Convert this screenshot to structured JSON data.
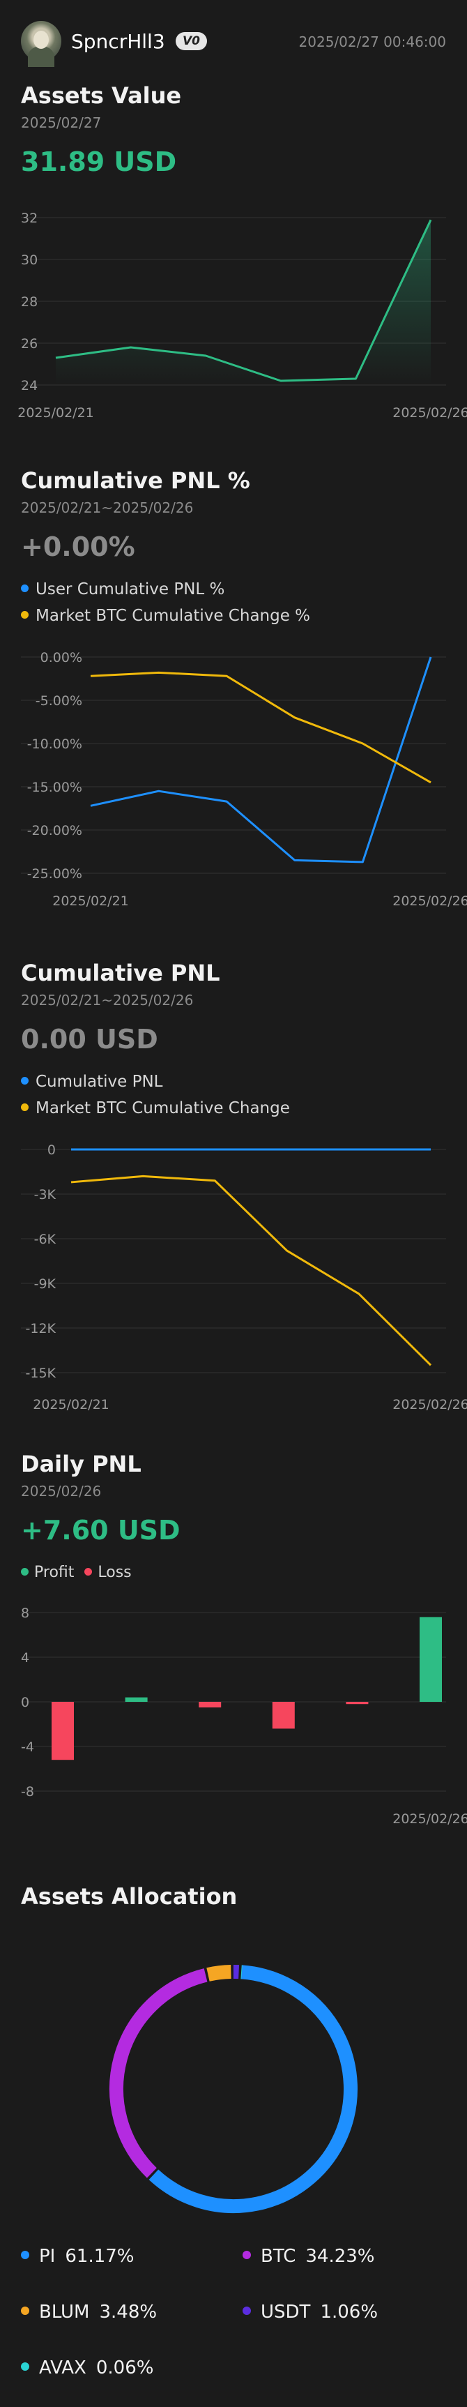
{
  "header": {
    "username": "SpncrHll3",
    "badge": "V0",
    "timestamp": "2025/02/27 00:46:00"
  },
  "assets_value": {
    "title": "Assets Value",
    "date": "2025/02/27",
    "value": "31.89 USD",
    "color": "#2ebd85"
  },
  "cumulative_pnl_pct": {
    "title": "Cumulative PNL %",
    "range": "2025/02/21~2025/02/26",
    "value": "+0.00%",
    "legend": [
      "User Cumulative PNL %",
      "Market BTC Cumulative Change %"
    ]
  },
  "cumulative_pnl": {
    "title": "Cumulative PNL",
    "range": "2025/02/21~2025/02/26",
    "value": "0.00 USD",
    "legend": [
      "Cumulative PNL",
      "Market BTC Cumulative Change"
    ]
  },
  "daily_pnl": {
    "title": "Daily PNL",
    "date": "2025/02/26",
    "value": "+7.60 USD",
    "legend": [
      "Profit",
      "Loss"
    ]
  },
  "assets_allocation": {
    "title": "Assets Allocation",
    "items": [
      {
        "name": "PI",
        "pct": "61.17%",
        "value": 61.17,
        "color": "#1e90ff"
      },
      {
        "name": "BTC",
        "pct": "34.23%",
        "value": 34.23,
        "color": "#b42be0"
      },
      {
        "name": "BLUM",
        "pct": "3.48%",
        "value": 3.48,
        "color": "#f5a623"
      },
      {
        "name": "USDT",
        "pct": "1.06%",
        "value": 1.06,
        "color": "#5b2de0"
      },
      {
        "name": "AVAX",
        "pct": "0.06%",
        "value": 0.06,
        "color": "#2ad4d4"
      }
    ]
  },
  "colors": {
    "green": "#2ebd85",
    "red": "#f6465d",
    "blue": "#1e90ff",
    "yellow": "#f0b90b",
    "grey_value": "#8b8b8b"
  },
  "chart_data": [
    {
      "type": "area",
      "name": "assets-value",
      "x": [
        "2025/02/21",
        "2025/02/22",
        "2025/02/23",
        "2025/02/24",
        "2025/02/25",
        "2025/02/26"
      ],
      "values": [
        25.3,
        25.8,
        25.4,
        24.2,
        24.3,
        31.89
      ],
      "ylim": [
        24,
        32
      ],
      "yticks": [
        24,
        26,
        28,
        30,
        32
      ],
      "xticks": [
        "2025/02/21",
        "2025/02/26"
      ],
      "xtick_index": [
        0,
        5
      ],
      "grid": true
    },
    {
      "type": "line",
      "name": "cumulative-pnl-pct",
      "x": [
        "2025/02/21",
        "2025/02/22",
        "2025/02/23",
        "2025/02/24",
        "2025/02/25",
        "2025/02/26"
      ],
      "series": [
        {
          "name": "User Cumulative PNL %",
          "values": [
            -17.2,
            -15.5,
            -16.7,
            -23.5,
            -23.7,
            0.0
          ],
          "color": "#1e90ff"
        },
        {
          "name": "Market BTC Cumulative Change %",
          "values": [
            -2.2,
            -1.8,
            -2.2,
            -7.0,
            -10.0,
            -14.5
          ],
          "color": "#f0b90b"
        }
      ],
      "ylim": [
        -25,
        0
      ],
      "yticks": [
        0,
        -5,
        -10,
        -15,
        -20,
        -25
      ],
      "ytick_labels": [
        "0.00%",
        "-5.00%",
        "-10.00%",
        "-15.00%",
        "-20.00%",
        "-25.00%"
      ],
      "xticks": [
        "2025/02/21",
        "2025/02/26"
      ],
      "xtick_index": [
        0,
        5
      ],
      "grid": true
    },
    {
      "type": "line",
      "name": "cumulative-pnl",
      "x": [
        "2025/02/21",
        "2025/02/22",
        "2025/02/23",
        "2025/02/24",
        "2025/02/25",
        "2025/02/26"
      ],
      "series": [
        {
          "name": "Cumulative PNL",
          "values": [
            0,
            0,
            0,
            0,
            0,
            0
          ],
          "color": "#1e90ff"
        },
        {
          "name": "Market BTC Cumulative Change",
          "values": [
            -2200,
            -1800,
            -2100,
            -6800,
            -9700,
            -14500
          ],
          "color": "#f0b90b"
        }
      ],
      "ylim": [
        -15000,
        0
      ],
      "yticks": [
        0,
        -3000,
        -6000,
        -9000,
        -12000,
        -15000
      ],
      "ytick_labels": [
        "0",
        "-3K",
        "-6K",
        "-9K",
        "-12K",
        "-15K"
      ],
      "xticks": [
        "2025/02/21",
        "2025/02/26"
      ],
      "xtick_index": [
        0,
        5
      ],
      "grid": true
    },
    {
      "type": "bar",
      "name": "daily-pnl",
      "categories": [
        "2025/02/21",
        "2025/02/22",
        "2025/02/23",
        "2025/02/24",
        "2025/02/25",
        "2025/02/26"
      ],
      "values": [
        -5.2,
        0.4,
        -0.5,
        -2.4,
        -0.2,
        7.6
      ],
      "ylim": [
        -8,
        8
      ],
      "yticks": [
        8,
        4,
        0,
        -4,
        -8
      ],
      "xticks": [
        "2025/02/26"
      ],
      "xtick_index": [
        5
      ],
      "grid": true
    },
    {
      "type": "pie",
      "name": "assets-allocation",
      "labels": [
        "PI",
        "BTC",
        "BLUM",
        "USDT",
        "AVAX"
      ],
      "values": [
        61.17,
        34.23,
        3.48,
        1.06,
        0.06
      ]
    }
  ]
}
